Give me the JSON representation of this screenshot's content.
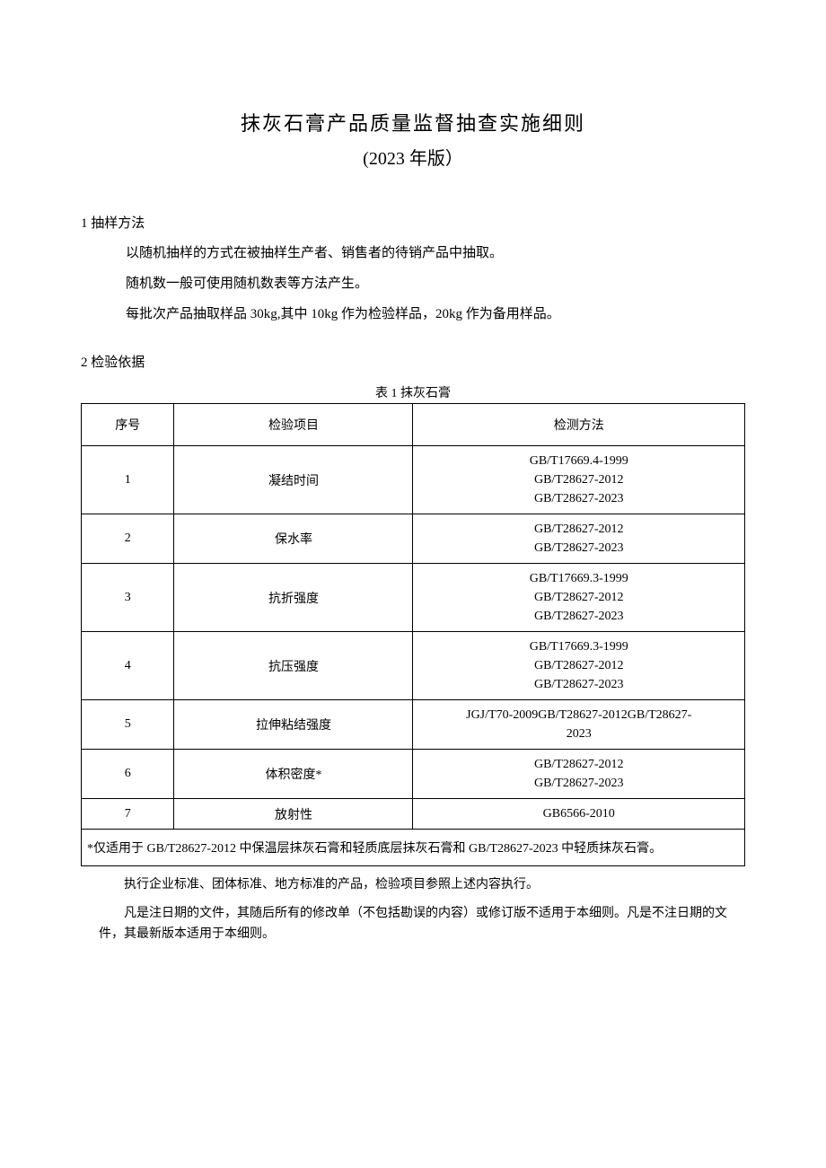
{
  "title": "抹灰石膏产品质量监督抽查实施细则",
  "subtitle": "(2023 年版）",
  "section1": {
    "header": "1 抽样方法",
    "p1": "以随机抽样的方式在被抽样生产者、销售者的待销产品中抽取。",
    "p2": "随机数一般可使用随机数表等方法产生。",
    "p3": "每批次产品抽取样品 30kg,其中 10kg 作为检验样品，20kg 作为备用样品。"
  },
  "section2": {
    "header": "2 检验依据"
  },
  "table": {
    "caption": "表 1 抹灰石膏",
    "columns": [
      "序号",
      "检验项目",
      "检测方法"
    ],
    "rows": [
      {
        "seq": "1",
        "item": "凝结时间",
        "methods": [
          "GB/T17669.4-1999",
          "GB/T28627-2012",
          "GB/T28627-2023"
        ]
      },
      {
        "seq": "2",
        "item": "保水率",
        "methods": [
          "GB/T28627-2012",
          "GB/T28627-2023"
        ]
      },
      {
        "seq": "3",
        "item": "抗折强度",
        "methods": [
          "GB/T17669.3-1999",
          "GB/T28627-2012",
          "GB/T28627-2023"
        ]
      },
      {
        "seq": "4",
        "item": "抗压强度",
        "methods": [
          "GB/T17669.3-1999",
          "GB/T28627-2012",
          "GB/T28627-2023"
        ]
      },
      {
        "seq": "5",
        "item": "拉伸粘结强度",
        "methods": [
          "JGJ/T70-2009GB/T28627-2012GB/T28627-",
          "2023"
        ]
      },
      {
        "seq": "6",
        "item": "体积密度*",
        "methods": [
          "GB/T28627-2012",
          "GB/T28627-2023"
        ]
      },
      {
        "seq": "7",
        "item": "放射性",
        "methods": [
          "GB6566-2010"
        ]
      }
    ],
    "footnote": "*仅适用于 GB/T28627-2012 中保温层抹灰石膏和轻质底层抹灰石膏和 GB/T28627-2023 中轻质抹灰石膏。"
  },
  "after_notes": {
    "p1": "执行企业标准、团体标准、地方标准的产品，检验项目参照上述内容执行。",
    "p2": "凡是注日期的文件，其随后所有的修改单（不包括勘误的内容）或修订版不适用于本细则。凡是不注日期的文件，其最新版本适用于本细则。"
  }
}
